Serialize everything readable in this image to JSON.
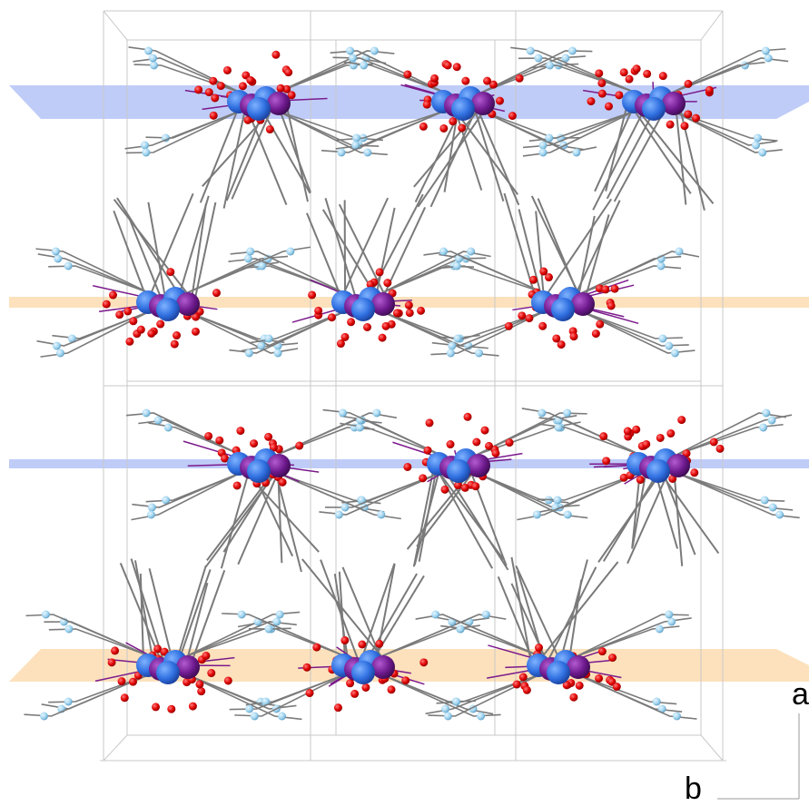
{
  "axes": {
    "a_label": "a",
    "b_label": "b"
  },
  "colors": {
    "background": "#ffffff",
    "plane_blue": "#b4c3f7",
    "plane_orange": "#fcdcb0",
    "cell_edge": "#c8c8c8",
    "bond": "#7a7a7a",
    "metal_bond": "#7b1a8c",
    "atom_blue": "#2f6fe0",
    "atom_purple": "#6e1a8e",
    "atom_red": "#e00000",
    "atom_lightblue": "#9fd4ef"
  },
  "legend_entries": [],
  "layers": [
    {
      "plane": "blue",
      "orientation": "up"
    },
    {
      "plane": "orange",
      "orientation": "down"
    },
    {
      "plane": "blue",
      "orientation": "up"
    },
    {
      "plane": "orange",
      "orientation": "down"
    }
  ],
  "columns": 3
}
